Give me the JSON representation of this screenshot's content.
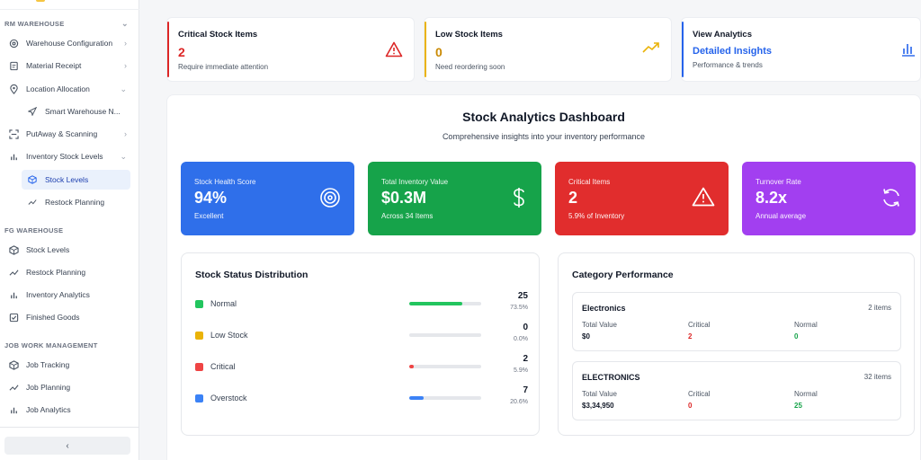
{
  "sidebar": {
    "sections": [
      {
        "title": "RM WAREHOUSE"
      },
      {
        "title": "FG WAREHOUSE"
      },
      {
        "title": "JOB WORK MANAGEMENT"
      }
    ],
    "rm_items": [
      {
        "label": "Warehouse Configuration",
        "icon": "gear-icon"
      },
      {
        "label": "Material Receipt",
        "icon": "receipt-icon"
      },
      {
        "label": "Location Allocation",
        "icon": "location-pin-icon"
      },
      {
        "label": "Smart Warehouse N...",
        "icon": "navigation-icon"
      },
      {
        "label": "PutAway & Scanning",
        "icon": "scan-icon"
      },
      {
        "label": "Inventory Stock Levels",
        "icon": "bar-chart-icon"
      },
      {
        "label": "Stock Levels",
        "icon": "box-icon"
      },
      {
        "label": "Restock Planning",
        "icon": "trend-icon"
      }
    ],
    "fg_items": [
      {
        "label": "Stock Levels",
        "icon": "box-icon"
      },
      {
        "label": "Restock Planning",
        "icon": "trend-icon"
      },
      {
        "label": "Inventory Analytics",
        "icon": "bar-chart-icon"
      },
      {
        "label": "Finished Goods",
        "icon": "checkbox-icon"
      }
    ],
    "job_items": [
      {
        "label": "Job Tracking",
        "icon": "box-icon"
      },
      {
        "label": "Job Planning",
        "icon": "trend-icon"
      },
      {
        "label": "Job Analytics",
        "icon": "bar-chart-icon"
      }
    ],
    "collapse_label": "‹"
  },
  "top_cards": [
    {
      "title": "Critical Stock Items",
      "value": "2",
      "desc": "Require immediate attention",
      "color": "#dc2626",
      "icon": "warning-icon"
    },
    {
      "title": "Low Stock Items",
      "value": "0",
      "desc": "Need reordering soon",
      "color": "#eab308",
      "icon": "trending-up-icon"
    },
    {
      "title": "View Analytics",
      "value": "Detailed Insights",
      "desc": "Performance & trends",
      "color": "#2563eb",
      "icon": "bar-chart-icon"
    }
  ],
  "dashboard": {
    "title": "Stock Analytics Dashboard",
    "subtitle": "Comprehensive insights into your inventory performance"
  },
  "kpis": [
    {
      "title": "Stock Health Score",
      "value": "94%",
      "desc": "Excellent",
      "color": "#2f6fea",
      "icon": "target-icon"
    },
    {
      "title": "Total Inventory Value",
      "value": "$0.3M",
      "desc": "Across 34 Items",
      "color": "#16a34a",
      "icon": "dollar-icon"
    },
    {
      "title": "Critical Items",
      "value": "2",
      "desc": "5.9% of Inventory",
      "color": "#e12d2d",
      "icon": "warning-icon"
    },
    {
      "title": "Turnover Rate",
      "value": "8.2x",
      "desc": "Annual average",
      "color": "#a23ff0",
      "icon": "refresh-icon"
    }
  ],
  "stock_status": {
    "title": "Stock Status Distribution",
    "rows": [
      {
        "label": "Normal",
        "count": "25",
        "pct": "73.5%",
        "fraction": 0.735,
        "color": "#22c55e"
      },
      {
        "label": "Low Stock",
        "count": "0",
        "pct": "0.0%",
        "fraction": 0.0,
        "color": "#eab308"
      },
      {
        "label": "Critical",
        "count": "2",
        "pct": "5.9%",
        "fraction": 0.059,
        "color": "#ef4444"
      },
      {
        "label": "Overstock",
        "count": "7",
        "pct": "20.6%",
        "fraction": 0.206,
        "color": "#3b82f6"
      }
    ]
  },
  "category_performance": {
    "title": "Category Performance",
    "categories": [
      {
        "name": "Electronics",
        "items": "2 items",
        "total_label": "Total Value",
        "total": "$0",
        "critical_label": "Critical",
        "critical": "2",
        "normal_label": "Normal",
        "normal": "0"
      },
      {
        "name": "ELECTRONICS",
        "items": "32 items",
        "total_label": "Total Value",
        "total": "$3,34,950",
        "critical_label": "Critical",
        "critical": "0",
        "normal_label": "Normal",
        "normal": "25"
      }
    ]
  }
}
